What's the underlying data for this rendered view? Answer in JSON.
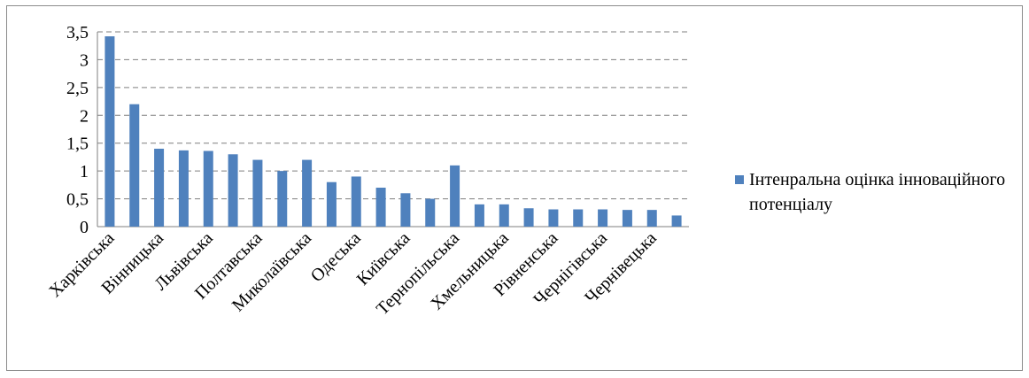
{
  "chart_data": {
    "type": "bar",
    "categories": [
      "Харківська",
      "",
      "Вінницька",
      "",
      "Львівська",
      "",
      "Полтавська",
      "",
      "Миколаївська",
      "",
      "Одеська",
      "",
      "Київська",
      "",
      "Тернопільська",
      "",
      "Хмельницька",
      "",
      "Рівненська",
      "",
      "Чернігівська",
      "",
      "Чернівецька",
      ""
    ],
    "series": [
      {
        "name": "Інтенральна оцінка інноваційного потенціалу",
        "color": "#4f81bd",
        "values": [
          3.42,
          2.2,
          1.4,
          1.37,
          1.36,
          1.3,
          1.2,
          1.0,
          1.2,
          0.8,
          0.9,
          0.7,
          0.6,
          0.5,
          1.1,
          0.4,
          0.4,
          0.33,
          0.31,
          0.31,
          0.31,
          0.3,
          0.3,
          0.2
        ]
      }
    ],
    "y_ticks": [
      "0",
      "0,5",
      "1",
      "1,5",
      "2",
      "2,5",
      "3",
      "3,5"
    ],
    "ylim": [
      0,
      3.5
    ],
    "grid": "horizontal dashed",
    "legend_position": "right"
  }
}
